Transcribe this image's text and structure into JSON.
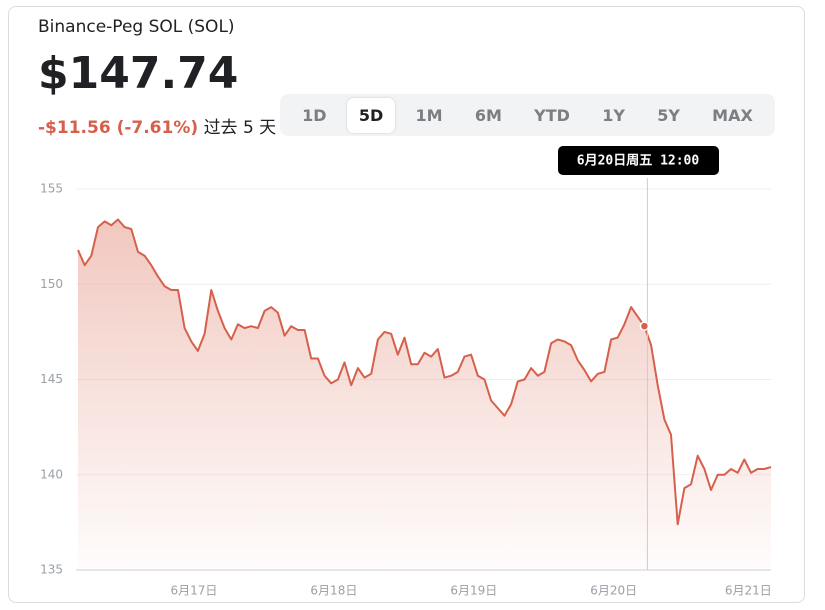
{
  "header": {
    "name": "Binance-Peg SOL (SOL)",
    "price": "$147.74",
    "change": "-$11.56 (-7.61%)",
    "period": "过去 5 天"
  },
  "tabs": [
    "1D",
    "5D",
    "1M",
    "6M",
    "YTD",
    "1Y",
    "5Y",
    "MAX"
  ],
  "active_tab": "5D",
  "chart_data": {
    "type": "area",
    "color": "#d6604c",
    "values": [
      151.8,
      151.0,
      151.5,
      153.0,
      153.3,
      153.1,
      153.4,
      153.0,
      152.9,
      151.7,
      151.5,
      151.0,
      150.4,
      149.9,
      149.7,
      149.7,
      147.7,
      147.0,
      146.5,
      147.4,
      149.7,
      148.6,
      147.7,
      147.1,
      147.9,
      147.7,
      147.8,
      147.7,
      148.6,
      148.8,
      148.5,
      147.3,
      147.8,
      147.6,
      147.6,
      146.1,
      146.1,
      145.2,
      144.8,
      145.0,
      145.9,
      144.7,
      145.6,
      145.1,
      145.3,
      147.1,
      147.5,
      147.4,
      146.3,
      147.2,
      145.8,
      145.8,
      146.4,
      146.2,
      146.6,
      145.1,
      145.2,
      145.4,
      146.2,
      146.3,
      145.2,
      145.0,
      143.9,
      143.5,
      143.1,
      143.7,
      144.9,
      145.0,
      145.6,
      145.2,
      145.4,
      146.9,
      147.1,
      147.0,
      146.8,
      146.0,
      145.5,
      144.9,
      145.3,
      145.4,
      147.1,
      147.2,
      147.9,
      148.8,
      148.3,
      147.8,
      146.8,
      144.7,
      142.9,
      142.1,
      137.4,
      139.3,
      139.5,
      141.0,
      140.3,
      139.2,
      140.0,
      140.0,
      140.3,
      140.1,
      140.8,
      140.1,
      140.3,
      140.3,
      140.4
    ],
    "xlim": [
      0,
      104
    ],
    "xticks": [
      {
        "value": 17.4,
        "label": "6月17日"
      },
      {
        "value": 38.4,
        "label": "6月18日"
      },
      {
        "value": 59.4,
        "label": "6月19日"
      },
      {
        "value": 80.4,
        "label": "6月20日"
      },
      {
        "value": 100.6,
        "label": "6月21日"
      }
    ],
    "ylim": [
      135,
      155
    ],
    "yticks": [
      135,
      140,
      145,
      150,
      155
    ],
    "grid": true,
    "hover": {
      "index": 85,
      "label": "6月20日周五 12:00"
    }
  }
}
